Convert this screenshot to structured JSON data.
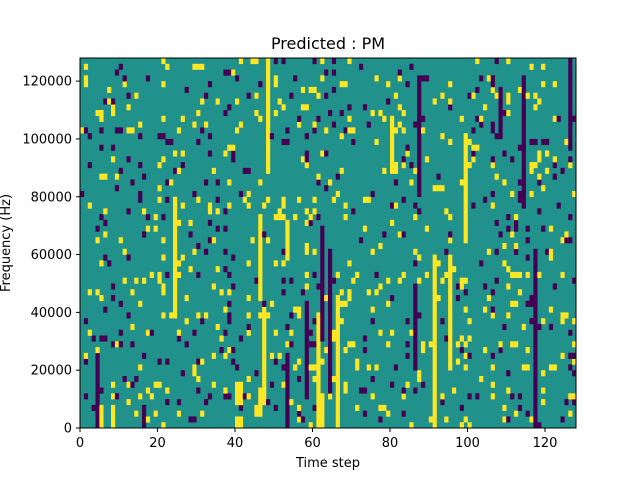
{
  "chart_data": {
    "type": "heatmap",
    "title": "Predicted : PM",
    "xlabel": "Time step",
    "ylabel": "Frequency (Hz)",
    "xlim": [
      0,
      128
    ],
    "ylim": [
      0,
      128000
    ],
    "x_ticks": [
      0,
      20,
      40,
      60,
      80,
      100,
      120
    ],
    "y_ticks": [
      0,
      20000,
      40000,
      60000,
      80000,
      100000,
      120000
    ],
    "rows": 64,
    "cols": 128,
    "row_step_hz": 2000,
    "colors": {
      "low": "#440154",
      "mid": "#21918c",
      "high": "#fde725"
    },
    "background_value": 0,
    "high_cells": [
      [
        0,
        40
      ],
      [
        0,
        41
      ],
      [
        1,
        40
      ],
      [
        1,
        41
      ],
      [
        4,
        40
      ],
      [
        4,
        41
      ],
      [
        5,
        40
      ],
      [
        5,
        41
      ],
      [
        6,
        40
      ],
      [
        6,
        41
      ],
      [
        7,
        40
      ],
      [
        7,
        41
      ],
      [
        2,
        45
      ],
      [
        3,
        45
      ],
      [
        2,
        46
      ],
      [
        3,
        46
      ],
      [
        4,
        46
      ],
      [
        5,
        46
      ],
      [
        6,
        46
      ],
      [
        4,
        47
      ],
      [
        5,
        47
      ],
      [
        6,
        47
      ],
      [
        7,
        47
      ],
      [
        8,
        47
      ],
      [
        9,
        47
      ],
      [
        10,
        47
      ],
      [
        11,
        47
      ],
      [
        12,
        47
      ],
      [
        13,
        47
      ],
      [
        14,
        47
      ],
      [
        15,
        47
      ],
      [
        16,
        47
      ],
      [
        17,
        47
      ],
      [
        18,
        47
      ],
      [
        19,
        47
      ],
      [
        20,
        47
      ],
      [
        22,
        46
      ],
      [
        23,
        46
      ],
      [
        24,
        46
      ],
      [
        25,
        46
      ],
      [
        26,
        46
      ],
      [
        27,
        46
      ],
      [
        28,
        46
      ],
      [
        29,
        46
      ],
      [
        30,
        46
      ],
      [
        31,
        46
      ],
      [
        32,
        46
      ],
      [
        33,
        46
      ],
      [
        34,
        46
      ],
      [
        35,
        46
      ],
      [
        36,
        46
      ],
      [
        0,
        61
      ],
      [
        1,
        61
      ],
      [
        2,
        61
      ],
      [
        3,
        61
      ],
      [
        4,
        61
      ],
      [
        5,
        61
      ],
      [
        6,
        61
      ],
      [
        7,
        61
      ],
      [
        8,
        61
      ],
      [
        9,
        61
      ],
      [
        10,
        61
      ],
      [
        11,
        61
      ],
      [
        12,
        61
      ],
      [
        13,
        61
      ],
      [
        14,
        61
      ],
      [
        15,
        61
      ],
      [
        16,
        61
      ],
      [
        17,
        61
      ],
      [
        18,
        61
      ],
      [
        19,
        61
      ],
      [
        0,
        62
      ],
      [
        1,
        62
      ],
      [
        2,
        62
      ],
      [
        3,
        62
      ],
      [
        4,
        62
      ],
      [
        5,
        62
      ],
      [
        0,
        66
      ],
      [
        1,
        66
      ],
      [
        2,
        66
      ],
      [
        3,
        66
      ],
      [
        4,
        66
      ],
      [
        5,
        66
      ],
      [
        6,
        66
      ],
      [
        7,
        66
      ],
      [
        8,
        66
      ],
      [
        9,
        66
      ],
      [
        10,
        66
      ],
      [
        11,
        66
      ],
      [
        12,
        66
      ],
      [
        13,
        66
      ],
      [
        14,
        66
      ],
      [
        15,
        66
      ],
      [
        16,
        66
      ],
      [
        17,
        66
      ],
      [
        18,
        66
      ],
      [
        19,
        66
      ],
      [
        20,
        66
      ],
      [
        21,
        66
      ],
      [
        30,
        53
      ],
      [
        31,
        53
      ],
      [
        32,
        53
      ],
      [
        33,
        53
      ],
      [
        34,
        53
      ],
      [
        35,
        53
      ],
      [
        20,
        24
      ],
      [
        21,
        24
      ],
      [
        22,
        24
      ],
      [
        23,
        24
      ],
      [
        24,
        24
      ],
      [
        25,
        24
      ],
      [
        26,
        24
      ],
      [
        27,
        24
      ],
      [
        28,
        24
      ],
      [
        29,
        24
      ],
      [
        30,
        24
      ],
      [
        31,
        24
      ],
      [
        32,
        24
      ],
      [
        33,
        24
      ],
      [
        34,
        24
      ],
      [
        35,
        24
      ],
      [
        36,
        24
      ],
      [
        37,
        24
      ],
      [
        38,
        24
      ],
      [
        39,
        24
      ],
      [
        44,
        48
      ],
      [
        45,
        48
      ],
      [
        46,
        48
      ],
      [
        47,
        48
      ],
      [
        48,
        48
      ],
      [
        49,
        48
      ],
      [
        50,
        48
      ],
      [
        51,
        48
      ],
      [
        52,
        48
      ],
      [
        53,
        48
      ],
      [
        54,
        48
      ],
      [
        55,
        48
      ],
      [
        56,
        48
      ],
      [
        57,
        48
      ],
      [
        58,
        48
      ],
      [
        59,
        48
      ],
      [
        60,
        48
      ],
      [
        61,
        48
      ],
      [
        62,
        48
      ],
      [
        63,
        48
      ],
      [
        0,
        91
      ],
      [
        1,
        91
      ],
      [
        2,
        91
      ],
      [
        3,
        91
      ],
      [
        4,
        91
      ],
      [
        5,
        91
      ],
      [
        6,
        91
      ],
      [
        7,
        91
      ],
      [
        8,
        91
      ],
      [
        9,
        91
      ],
      [
        10,
        91
      ],
      [
        11,
        91
      ],
      [
        12,
        91
      ],
      [
        13,
        91
      ],
      [
        14,
        91
      ],
      [
        15,
        91
      ],
      [
        16,
        91
      ],
      [
        17,
        91
      ],
      [
        18,
        91
      ],
      [
        19,
        91
      ],
      [
        20,
        91
      ],
      [
        21,
        91
      ],
      [
        22,
        91
      ],
      [
        23,
        91
      ],
      [
        24,
        91
      ],
      [
        25,
        91
      ],
      [
        26,
        91
      ],
      [
        27,
        91
      ],
      [
        28,
        91
      ],
      [
        29,
        91
      ],
      [
        10,
        95
      ],
      [
        11,
        95
      ],
      [
        12,
        95
      ],
      [
        13,
        95
      ],
      [
        14,
        95
      ],
      [
        15,
        95
      ],
      [
        16,
        95
      ],
      [
        17,
        95
      ],
      [
        18,
        95
      ],
      [
        19,
        95
      ],
      [
        20,
        95
      ],
      [
        21,
        95
      ],
      [
        22,
        95
      ],
      [
        23,
        95
      ],
      [
        24,
        95
      ],
      [
        25,
        95
      ],
      [
        26,
        95
      ],
      [
        27,
        95
      ],
      [
        28,
        95
      ],
      [
        29,
        95
      ],
      [
        32,
        99
      ],
      [
        33,
        99
      ],
      [
        34,
        99
      ],
      [
        35,
        99
      ],
      [
        36,
        99
      ],
      [
        37,
        99
      ],
      [
        38,
        99
      ],
      [
        39,
        99
      ],
      [
        40,
        99
      ],
      [
        41,
        99
      ],
      [
        42,
        99
      ],
      [
        43,
        99
      ],
      [
        44,
        99
      ],
      [
        45,
        99
      ],
      [
        46,
        99
      ],
      [
        47,
        99
      ],
      [
        48,
        99
      ],
      [
        49,
        99
      ],
      [
        50,
        99
      ],
      [
        44,
        80
      ],
      [
        45,
        80
      ],
      [
        46,
        80
      ],
      [
        47,
        80
      ],
      [
        48,
        80
      ],
      [
        49,
        80
      ],
      [
        50,
        80
      ],
      [
        51,
        80
      ],
      [
        52,
        80
      ],
      [
        0,
        8
      ],
      [
        1,
        8
      ],
      [
        2,
        8
      ],
      [
        3,
        8
      ],
      [
        0,
        5
      ],
      [
        1,
        5
      ],
      [
        2,
        5
      ],
      [
        3,
        5
      ]
    ],
    "low_cells": [
      [
        0,
        4
      ],
      [
        1,
        4
      ],
      [
        2,
        4
      ],
      [
        3,
        4
      ],
      [
        4,
        4
      ],
      [
        5,
        4
      ],
      [
        6,
        4
      ],
      [
        7,
        4
      ],
      [
        8,
        4
      ],
      [
        9,
        4
      ],
      [
        10,
        4
      ],
      [
        11,
        4
      ],
      [
        12,
        4
      ],
      [
        0,
        53
      ],
      [
        1,
        53
      ],
      [
        2,
        53
      ],
      [
        3,
        53
      ],
      [
        4,
        53
      ],
      [
        5,
        53
      ],
      [
        6,
        53
      ],
      [
        7,
        53
      ],
      [
        8,
        53
      ],
      [
        9,
        53
      ],
      [
        10,
        53
      ],
      [
        11,
        53
      ],
      [
        12,
        53
      ],
      [
        0,
        16
      ],
      [
        1,
        16
      ],
      [
        2,
        16
      ],
      [
        3,
        16
      ],
      [
        5,
        58
      ],
      [
        6,
        58
      ],
      [
        7,
        58
      ],
      [
        8,
        58
      ],
      [
        9,
        58
      ],
      [
        10,
        58
      ],
      [
        11,
        58
      ],
      [
        12,
        58
      ],
      [
        13,
        58
      ],
      [
        14,
        58
      ],
      [
        15,
        58
      ],
      [
        16,
        58
      ],
      [
        17,
        58
      ],
      [
        18,
        58
      ],
      [
        19,
        58
      ],
      [
        20,
        58
      ],
      [
        21,
        58
      ],
      [
        15,
        62
      ],
      [
        16,
        62
      ],
      [
        17,
        62
      ],
      [
        18,
        62
      ],
      [
        19,
        62
      ],
      [
        20,
        62
      ],
      [
        21,
        62
      ],
      [
        22,
        62
      ],
      [
        23,
        62
      ],
      [
        24,
        62
      ],
      [
        25,
        62
      ],
      [
        26,
        62
      ],
      [
        27,
        62
      ],
      [
        28,
        62
      ],
      [
        29,
        62
      ],
      [
        30,
        62
      ],
      [
        31,
        62
      ],
      [
        32,
        62
      ],
      [
        33,
        62
      ],
      [
        34,
        62
      ],
      [
        6,
        64
      ],
      [
        7,
        64
      ],
      [
        8,
        64
      ],
      [
        9,
        64
      ],
      [
        10,
        64
      ],
      [
        11,
        64
      ],
      [
        12,
        64
      ],
      [
        13,
        64
      ],
      [
        14,
        64
      ],
      [
        15,
        64
      ],
      [
        16,
        64
      ],
      [
        17,
        64
      ],
      [
        18,
        64
      ],
      [
        19,
        64
      ],
      [
        20,
        64
      ],
      [
        21,
        64
      ],
      [
        22,
        64
      ],
      [
        23,
        64
      ],
      [
        24,
        64
      ],
      [
        25,
        64
      ],
      [
        26,
        64
      ],
      [
        27,
        64
      ],
      [
        28,
        64
      ],
      [
        29,
        64
      ],
      [
        30,
        64
      ],
      [
        10,
        86
      ],
      [
        11,
        86
      ],
      [
        12,
        86
      ],
      [
        13,
        86
      ],
      [
        14,
        86
      ],
      [
        15,
        86
      ],
      [
        16,
        86
      ],
      [
        17,
        86
      ],
      [
        18,
        86
      ],
      [
        19,
        86
      ],
      [
        20,
        86
      ],
      [
        21,
        86
      ],
      [
        22,
        86
      ],
      [
        23,
        86
      ],
      [
        24,
        86
      ],
      [
        40,
        87
      ],
      [
        41,
        87
      ],
      [
        42,
        87
      ],
      [
        43,
        87
      ],
      [
        44,
        87
      ],
      [
        45,
        87
      ],
      [
        46,
        87
      ],
      [
        47,
        87
      ],
      [
        48,
        87
      ],
      [
        49,
        87
      ],
      [
        50,
        87
      ],
      [
        51,
        87
      ],
      [
        52,
        87
      ],
      [
        53,
        87
      ],
      [
        54,
        87
      ],
      [
        55,
        87
      ],
      [
        56,
        87
      ],
      [
        57,
        87
      ],
      [
        58,
        87
      ],
      [
        59,
        87
      ],
      [
        60,
        87
      ],
      [
        50,
        108
      ],
      [
        51,
        108
      ],
      [
        52,
        108
      ],
      [
        53,
        108
      ],
      [
        54,
        108
      ],
      [
        55,
        108
      ],
      [
        56,
        108
      ],
      [
        57,
        108
      ],
      [
        58,
        108
      ],
      [
        38,
        114
      ],
      [
        39,
        114
      ],
      [
        40,
        114
      ],
      [
        41,
        114
      ],
      [
        42,
        114
      ],
      [
        43,
        114
      ],
      [
        44,
        114
      ],
      [
        45,
        114
      ],
      [
        46,
        114
      ],
      [
        47,
        114
      ],
      [
        48,
        114
      ],
      [
        49,
        114
      ],
      [
        50,
        114
      ],
      [
        51,
        114
      ],
      [
        52,
        114
      ],
      [
        53,
        114
      ],
      [
        54,
        114
      ],
      [
        55,
        114
      ],
      [
        56,
        114
      ],
      [
        57,
        114
      ],
      [
        58,
        114
      ],
      [
        59,
        114
      ],
      [
        60,
        114
      ],
      [
        0,
        117
      ],
      [
        1,
        117
      ],
      [
        2,
        117
      ],
      [
        3,
        117
      ],
      [
        4,
        117
      ],
      [
        5,
        117
      ],
      [
        6,
        117
      ],
      [
        7,
        117
      ],
      [
        8,
        117
      ],
      [
        9,
        117
      ],
      [
        10,
        117
      ],
      [
        11,
        117
      ],
      [
        12,
        117
      ],
      [
        13,
        117
      ],
      [
        14,
        117
      ],
      [
        15,
        117
      ],
      [
        16,
        117
      ],
      [
        17,
        117
      ],
      [
        18,
        117
      ],
      [
        19,
        117
      ],
      [
        20,
        117
      ],
      [
        21,
        117
      ],
      [
        22,
        117
      ],
      [
        23,
        117
      ],
      [
        24,
        117
      ],
      [
        25,
        117
      ],
      [
        26,
        117
      ],
      [
        27,
        117
      ],
      [
        28,
        117
      ],
      [
        29,
        117
      ],
      [
        30,
        117
      ],
      [
        48,
        126
      ],
      [
        49,
        126
      ],
      [
        50,
        126
      ],
      [
        51,
        126
      ],
      [
        52,
        126
      ],
      [
        53,
        126
      ],
      [
        54,
        126
      ],
      [
        55,
        126
      ],
      [
        56,
        126
      ],
      [
        57,
        126
      ],
      [
        58,
        126
      ],
      [
        59,
        126
      ],
      [
        60,
        126
      ],
      [
        61,
        126
      ],
      [
        62,
        126
      ],
      [
        63,
        126
      ]
    ],
    "seed": 1337,
    "scatter_high_density": 0.06,
    "scatter_low_density": 0.045,
    "grid": false,
    "legend": "none"
  }
}
